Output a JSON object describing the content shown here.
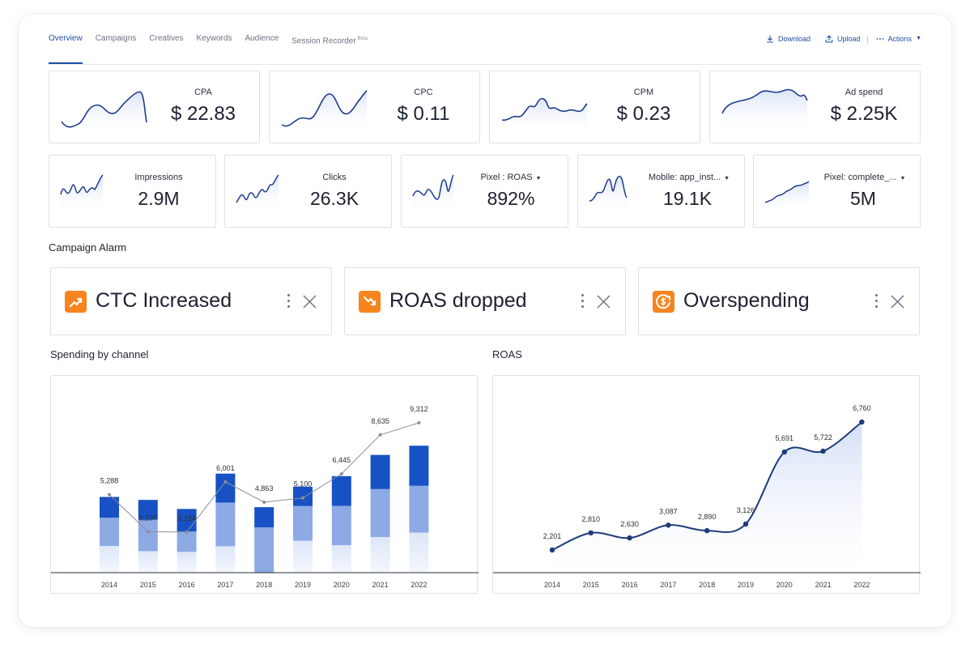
{
  "nav": {
    "tabs": [
      {
        "label": "Overview",
        "active": true
      },
      {
        "label": "Campaigns"
      },
      {
        "label": "Creatives"
      },
      {
        "label": "Keywords"
      },
      {
        "label": "Audience"
      },
      {
        "label": "Session Recorder",
        "badge": "Beta"
      }
    ],
    "actions": {
      "download": "Download",
      "upload": "Upload",
      "more": "Actions"
    }
  },
  "kpis_row1": [
    {
      "label": "CPA",
      "value": "$ 22.83"
    },
    {
      "label": "CPC",
      "value": "$ 0.11"
    },
    {
      "label": "CPM",
      "value": "$ 0.23"
    },
    {
      "label": "Ad spend",
      "value": "$ 2.25K"
    }
  ],
  "kpis_row2": [
    {
      "label": "Impressions",
      "value": "2.9M"
    },
    {
      "label": "Clicks",
      "value": "26.3K"
    },
    {
      "label": "Pixel : ROAS",
      "value": "892%",
      "dropdown": true
    },
    {
      "label": "Mobile: app_inst...",
      "value": "19.1K",
      "dropdown": true
    },
    {
      "label": "Pixel: complete_...",
      "value": "5M",
      "dropdown": true
    }
  ],
  "alarm_section": {
    "title": "Campaign Alarm"
  },
  "alarms": [
    {
      "text": "CTC Increased",
      "icon": "trend-up-icon"
    },
    {
      "text": "ROAS dropped",
      "icon": "trend-down-icon"
    },
    {
      "text": "Overspending",
      "icon": "dollar-up-icon"
    }
  ],
  "colors": {
    "accent": "#1e4fa8",
    "navy": "#1e3a7b",
    "bar_dark": "#1751c4",
    "bar_mid": "#8daae5",
    "bar_light": "#e1e8f8",
    "alarm_orange": "#f7841e"
  },
  "spending": {
    "title": "Spending by channel"
  },
  "roas": {
    "title": "ROAS"
  },
  "chart_data": [
    {
      "type": "bar",
      "title": "Spending by channel",
      "stacked": true,
      "categories": [
        "2014",
        "2015",
        "2016",
        "2017",
        "2018",
        "2019",
        "2020",
        "2021",
        "2022"
      ],
      "series": [
        {
          "values": [
            1800,
            1450,
            1400,
            1780,
            0,
            2150,
            1850,
            2400,
            2700
          ]
        },
        {
          "values": [
            1900,
            2120,
            1370,
            2940,
            3050,
            2340,
            2650,
            3230,
            3150
          ]
        },
        {
          "values": [
            1400,
            1330,
            1520,
            1950,
            1360,
            1300,
            2000,
            2300,
            2700
          ]
        }
      ],
      "line": {
        "values": [
          5288,
          3207,
          3184,
          6001,
          4863,
          5100,
          6445,
          8635,
          9312
        ]
      }
    },
    {
      "type": "area",
      "title": "ROAS",
      "categories": [
        "2014",
        "2015",
        "2016",
        "2017",
        "2018",
        "2019",
        "2020",
        "2021",
        "2022"
      ],
      "values": [
        2201,
        2810,
        2630,
        3087,
        2890,
        3126,
        5691,
        5722,
        6760
      ]
    }
  ]
}
